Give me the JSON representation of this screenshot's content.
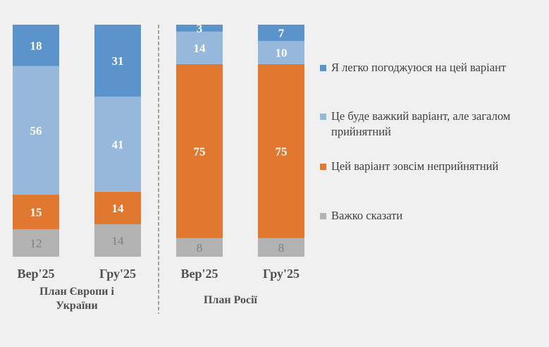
{
  "chart_data": {
    "type": "stacked-bar",
    "categories": [
      "Вер'25",
      "Гру'25",
      "Вер'25",
      "Гру'25"
    ],
    "groups": [
      {
        "label": "План Європи і України",
        "categories": [
          0,
          1
        ]
      },
      {
        "label": "План Росії",
        "categories": [
          2,
          3
        ]
      }
    ],
    "series": [
      {
        "name": "Я легко погоджуюся на цей варіант",
        "color": "#5b93cb",
        "values": [
          18,
          31,
          3,
          7
        ]
      },
      {
        "name": "Це буде важкий варіант, але загалом прийнятний",
        "color": "#95b8db",
        "values": [
          56,
          41,
          14,
          10
        ]
      },
      {
        "name": "Цей варіант зовсім неприйнятний",
        "color": "#e07830",
        "values": [
          15,
          14,
          75,
          75
        ]
      },
      {
        "name": "Важко сказати",
        "color": "#b3b3b3",
        "values": [
          12,
          14,
          8,
          8
        ]
      }
    ],
    "legend_position": "right",
    "grid": false
  }
}
